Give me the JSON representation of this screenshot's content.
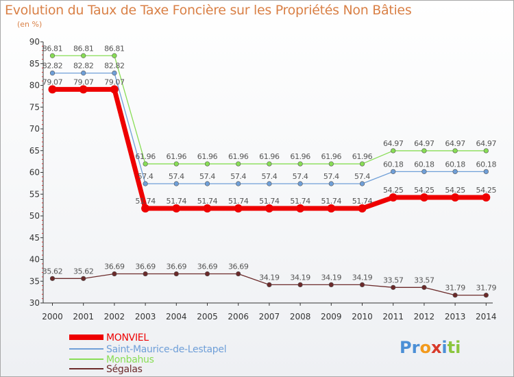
{
  "chart_data": {
    "type": "line",
    "title": "Evolution du Taux de Taxe Foncière sur les Propriétés Non Bâties",
    "ylabel": "(en %)",
    "xlabel": "",
    "ylim": [
      30,
      90
    ],
    "yticks": [
      "30",
      "35",
      "40",
      "45",
      "50",
      "55",
      "60",
      "65",
      "70",
      "75",
      "80",
      "85",
      "90"
    ],
    "categories": [
      "2000",
      "2001",
      "2002",
      "2003",
      "2004",
      "2005",
      "2006",
      "2007",
      "2008",
      "2009",
      "2010",
      "2011",
      "2012",
      "2013",
      "2014"
    ],
    "grid": false,
    "legend_position": "bottom-left",
    "series": [
      {
        "name": "MONVIEL",
        "color": "#ee0000",
        "thick": true,
        "values": [
          79.07,
          79.07,
          79.07,
          51.74,
          51.74,
          51.74,
          51.74,
          51.74,
          51.74,
          51.74,
          51.74,
          54.25,
          54.25,
          54.25,
          54.25
        ],
        "labels": [
          "79.07",
          "79.07",
          "79.07",
          "51.74",
          "51.74",
          "51.74",
          "51.74",
          "51.74",
          "51.74",
          "51.74",
          "51.74",
          "54.25",
          "54.25",
          "54.25",
          "54.25"
        ]
      },
      {
        "name": "Saint-Maurice-de-Lestapel",
        "color": "#6f9fd8",
        "thick": false,
        "values": [
          82.82,
          82.82,
          82.82,
          57.4,
          57.4,
          57.4,
          57.4,
          57.4,
          57.4,
          57.4,
          57.4,
          60.18,
          60.18,
          60.18,
          60.18
        ],
        "labels": [
          "82.82",
          "82.82",
          "82.82",
          "57.4",
          "57.4",
          "57.4",
          "57.4",
          "57.4",
          "57.4",
          "57.4",
          "57.4",
          "60.18",
          "60.18",
          "60.18",
          "60.18"
        ]
      },
      {
        "name": "Monbahus",
        "color": "#88dd55",
        "thick": false,
        "values": [
          86.81,
          86.81,
          86.81,
          61.96,
          61.96,
          61.96,
          61.96,
          61.96,
          61.96,
          61.96,
          61.96,
          64.97,
          64.97,
          64.97,
          64.97
        ],
        "labels": [
          "86.81",
          "86.81",
          "86.81",
          "61.96",
          "61.96",
          "61.96",
          "61.96",
          "61.96",
          "61.96",
          "61.96",
          "61.96",
          "64.97",
          "64.97",
          "64.97",
          "64.97"
        ]
      },
      {
        "name": "Ségalas",
        "color": "#6b2a2a",
        "thick": false,
        "values": [
          35.62,
          35.62,
          36.69,
          36.69,
          36.69,
          36.69,
          36.69,
          34.19,
          34.19,
          34.19,
          34.19,
          33.57,
          33.57,
          31.79,
          31.79
        ],
        "labels": [
          "35.62",
          "35.62",
          "36.69",
          "36.69",
          "36.69",
          "36.69",
          "36.69",
          "34.19",
          "34.19",
          "34.19",
          "34.19",
          "33.57",
          "33.57",
          "31.79",
          "31.79"
        ]
      }
    ]
  },
  "logo": {
    "parts": [
      "Pr",
      "o",
      "x",
      "i",
      "ti"
    ],
    "colors": [
      "#4b8fd6",
      "#f29a1d",
      "#d83a2a",
      "#4b8fd6",
      "#8cc63f"
    ]
  }
}
